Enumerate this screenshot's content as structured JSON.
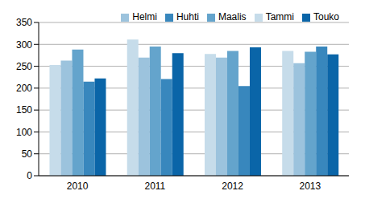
{
  "chart_data": {
    "type": "bar",
    "categories": [
      "2010",
      "2011",
      "2012",
      "2013"
    ],
    "series": [
      {
        "name": "Tammi",
        "color": "#c6dcea",
        "values": [
          253,
          311,
          278,
          285
        ]
      },
      {
        "name": "Helmi",
        "color": "#9cc3dd",
        "values": [
          263,
          270,
          270,
          257
        ]
      },
      {
        "name": "Maalis",
        "color": "#64a4cc",
        "values": [
          288,
          295,
          285,
          283
        ]
      },
      {
        "name": "Huhti",
        "color": "#3887bd",
        "values": [
          215,
          221,
          205,
          295
        ]
      },
      {
        "name": "Touko",
        "color": "#0a65a8",
        "values": [
          222,
          280,
          293,
          277
        ]
      }
    ],
    "ylim": [
      0,
      350
    ],
    "yticks": [
      0,
      50,
      100,
      150,
      200,
      250,
      300,
      350
    ],
    "grid": true,
    "legend": "upper right"
  }
}
